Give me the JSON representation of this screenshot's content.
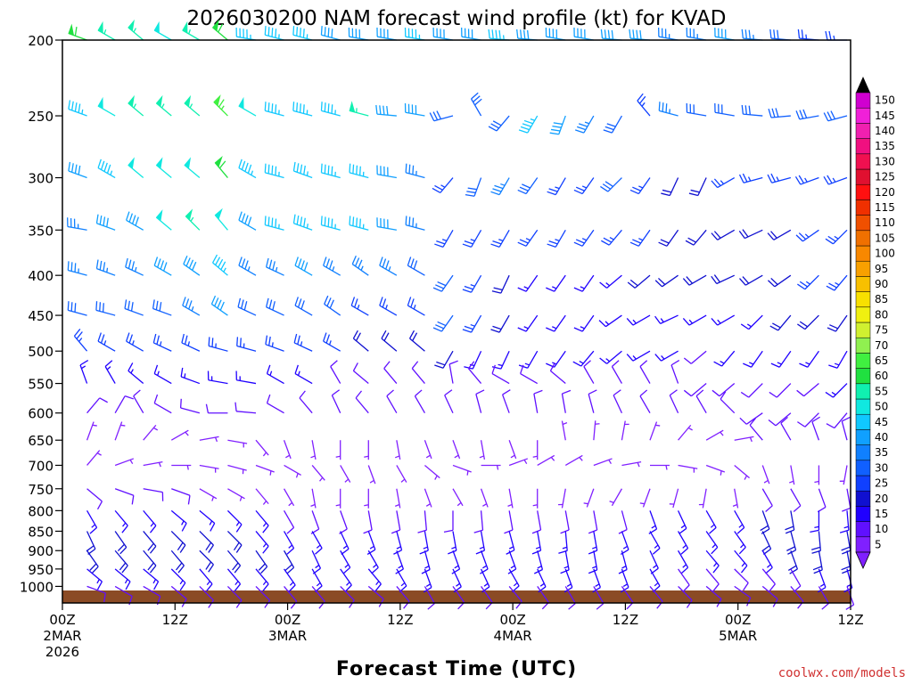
{
  "title": "2026030200 NAM forecast wind profile (kt) for KVAD",
  "xlabel": "Forecast Time (UTC)",
  "credit": "coolwx.com/models",
  "chart_data": {
    "type": "wind-barb-profile",
    "title": "2026030200 NAM forecast wind profile (kt) for KVAD",
    "xlabel": "Forecast Time (UTC)",
    "ylabel": "",
    "units": "kt",
    "y_scale": "log-pressure (hPa), reversed",
    "ylim": [
      200,
      1050
    ],
    "xlim_hours": [
      0,
      84
    ],
    "y_ticks": [
      200,
      250,
      300,
      350,
      400,
      450,
      500,
      550,
      600,
      650,
      700,
      750,
      800,
      850,
      900,
      950,
      1000
    ],
    "x_ticks": [
      {
        "hour": 0,
        "lines": [
          "00Z",
          "2MAR",
          "2026"
        ]
      },
      {
        "hour": 12,
        "lines": [
          "12Z"
        ]
      },
      {
        "hour": 24,
        "lines": [
          "00Z",
          "3MAR"
        ]
      },
      {
        "hour": 36,
        "lines": [
          "12Z"
        ]
      },
      {
        "hour": 48,
        "lines": [
          "00Z",
          "4MAR"
        ]
      },
      {
        "hour": 60,
        "lines": [
          "12Z"
        ]
      },
      {
        "hour": 72,
        "lines": [
          "00Z",
          "5MAR"
        ]
      },
      {
        "hour": 84,
        "lines": [
          "12Z"
        ]
      }
    ],
    "levels": [
      200,
      250,
      300,
      350,
      400,
      450,
      500,
      550,
      600,
      650,
      700,
      750,
      800,
      850,
      900,
      950,
      1000
    ],
    "forecast_hours_interval": 3,
    "colorbar": {
      "labels": [
        "5",
        "10",
        "15",
        "20",
        "25",
        "30",
        "35",
        "40",
        "45",
        "50",
        "55",
        "60",
        "65",
        "70",
        "75",
        "80",
        "85",
        "90",
        "95",
        "100",
        "105",
        "110",
        "115",
        "120",
        "125",
        "130",
        "135",
        "140",
        "145",
        "150"
      ],
      "colors": [
        "#8020ff",
        "#6010ff",
        "#2000ff",
        "#1010d0",
        "#1040ff",
        "#1060ff",
        "#1080ff",
        "#10a0ff",
        "#10c8ff",
        "#10e8e0",
        "#10f0b0",
        "#20e040",
        "#40f040",
        "#90f050",
        "#d0f030",
        "#f0f010",
        "#f8e000",
        "#f8c000",
        "#f8a000",
        "#f88800",
        "#f07000",
        "#f05000",
        "#f03000",
        "#ff1010",
        "#e01030",
        "#f01050",
        "#f01080",
        "#f020b0",
        "#f020d8",
        "#d000d0"
      ]
    },
    "ground": {
      "color": "#8b4b25"
    },
    "rows": [
      {
        "p": 200,
        "dir": [
          290,
          300,
          310,
          300,
          300,
          310,
          280,
          285,
          285,
          285,
          280,
          280,
          280,
          280,
          280,
          275,
          275,
          280,
          280,
          275,
          275,
          280,
          280,
          280,
          275,
          275,
          275,
          270,
          265,
          265
        ],
        "spd": [
          60,
          55,
          55,
          50,
          55,
          60,
          45,
          45,
          45,
          40,
          40,
          40,
          45,
          40,
          40,
          45,
          40,
          40,
          40,
          40,
          40,
          35,
          35,
          40,
          35,
          30,
          25,
          25,
          30,
          25
        ]
      },
      {
        "p": 250,
        "dir": [
          290,
          300,
          310,
          310,
          310,
          315,
          300,
          285,
          285,
          285,
          285,
          275,
          280,
          255,
          330,
          220,
          210,
          200,
          210,
          210,
          320,
          285,
          280,
          280,
          275,
          265,
          260,
          255,
          255,
          265
        ],
        "spd": [
          45,
          50,
          55,
          55,
          55,
          65,
          50,
          45,
          45,
          45,
          55,
          40,
          40,
          30,
          30,
          30,
          45,
          40,
          35,
          30,
          25,
          35,
          30,
          30,
          30,
          30,
          30,
          30,
          30,
          30
        ]
      },
      {
        "p": 300,
        "dir": [
          290,
          300,
          310,
          310,
          310,
          320,
          300,
          285,
          290,
          285,
          285,
          280,
          285,
          220,
          200,
          210,
          215,
          210,
          215,
          225,
          215,
          205,
          205,
          240,
          255,
          255,
          250,
          250,
          245,
          245
        ],
        "spd": [
          40,
          45,
          50,
          50,
          50,
          60,
          45,
          45,
          45,
          45,
          45,
          40,
          35,
          25,
          30,
          35,
          30,
          25,
          25,
          30,
          25,
          20,
          20,
          25,
          25,
          25,
          25,
          25,
          25,
          25
        ]
      },
      {
        "p": 350,
        "dir": [
          280,
          290,
          300,
          310,
          315,
          320,
          300,
          285,
          290,
          285,
          285,
          280,
          285,
          210,
          210,
          210,
          215,
          210,
          215,
          220,
          215,
          215,
          220,
          240,
          245,
          240,
          235,
          225,
          225,
          215
        ],
        "spd": [
          35,
          40,
          40,
          50,
          55,
          50,
          40,
          45,
          45,
          45,
          45,
          40,
          35,
          25,
          25,
          25,
          25,
          25,
          25,
          25,
          25,
          20,
          20,
          20,
          20,
          20,
          25,
          25,
          25,
          25
        ]
      },
      {
        "p": 400,
        "dir": [
          285,
          290,
          295,
          300,
          305,
          310,
          300,
          295,
          300,
          300,
          305,
          300,
          300,
          215,
          210,
          205,
          215,
          215,
          215,
          230,
          230,
          235,
          240,
          245,
          240,
          235,
          225,
          220,
          225,
          215
        ],
        "spd": [
          35,
          35,
          35,
          40,
          40,
          45,
          35,
          35,
          40,
          35,
          35,
          35,
          30,
          30,
          25,
          20,
          15,
          15,
          15,
          15,
          20,
          20,
          20,
          20,
          20,
          20,
          25,
          25,
          25,
          25
        ]
      },
      {
        "p": 450,
        "dir": [
          285,
          285,
          290,
          290,
          300,
          305,
          295,
          295,
          300,
          305,
          300,
          300,
          300,
          215,
          210,
          210,
          215,
          215,
          215,
          235,
          240,
          245,
          240,
          240,
          225,
          220,
          225,
          215,
          215,
          205
        ],
        "spd": [
          30,
          30,
          30,
          30,
          35,
          40,
          30,
          30,
          30,
          30,
          25,
          25,
          25,
          30,
          25,
          20,
          15,
          15,
          15,
          15,
          15,
          15,
          15,
          15,
          15,
          20,
          20,
          20,
          20,
          25
        ]
      },
      {
        "p": 500,
        "dir": [
          320,
          300,
          300,
          295,
          295,
          285,
          285,
          290,
          295,
          300,
          310,
          310,
          310,
          210,
          205,
          205,
          210,
          215,
          220,
          230,
          240,
          240,
          230,
          220,
          215,
          215,
          215,
          210,
          210,
          195
        ],
        "spd": [
          25,
          25,
          25,
          25,
          25,
          25,
          25,
          25,
          25,
          25,
          20,
          20,
          20,
          20,
          15,
          15,
          15,
          15,
          15,
          15,
          15,
          15,
          10,
          15,
          15,
          15,
          15,
          15,
          20,
          20
        ]
      },
      {
        "p": 550,
        "dir": [
          340,
          330,
          310,
          300,
          290,
          280,
          280,
          300,
          300,
          330,
          310,
          320,
          320,
          350,
          320,
          300,
          300,
          310,
          330,
          330,
          330,
          340,
          230,
          230,
          225,
          225,
          230,
          225,
          215,
          200
        ],
        "spd": [
          15,
          15,
          15,
          15,
          15,
          15,
          15,
          15,
          15,
          10,
          10,
          10,
          10,
          10,
          10,
          10,
          10,
          10,
          10,
          10,
          10,
          10,
          10,
          10,
          10,
          10,
          10,
          15,
          15,
          20
        ]
      },
      {
        "p": 600,
        "dir": [
          40,
          30,
          330,
          300,
          285,
          270,
          275,
          300,
          320,
          335,
          320,
          330,
          330,
          335,
          345,
          340,
          350,
          350,
          345,
          335,
          330,
          335,
          330,
          315,
          235,
          230,
          225,
          220,
          215,
          205
        ],
        "spd": [
          10,
          10,
          10,
          10,
          10,
          10,
          10,
          10,
          10,
          10,
          10,
          10,
          10,
          10,
          10,
          10,
          10,
          10,
          10,
          10,
          10,
          10,
          10,
          10,
          10,
          10,
          10,
          10,
          15,
          15
        ]
      },
      {
        "p": 650,
        "dir": [
          20,
          20,
          40,
          60,
          80,
          100,
          140,
          160,
          170,
          180,
          180,
          170,
          160,
          160,
          170,
          160,
          180,
          350,
          5,
          10,
          20,
          40,
          60,
          80,
          320,
          330,
          340,
          345,
          340,
          330
        ],
        "spd": [
          5,
          5,
          5,
          5,
          5,
          5,
          5,
          5,
          5,
          5,
          5,
          5,
          5,
          5,
          5,
          5,
          5,
          5,
          5,
          5,
          5,
          5,
          5,
          5,
          10,
          10,
          10,
          10,
          10,
          10
        ]
      },
      {
        "p": 700,
        "dir": [
          40,
          70,
          80,
          90,
          100,
          105,
          110,
          120,
          140,
          150,
          160,
          150,
          130,
          110,
          90,
          70,
          60,
          60,
          70,
          80,
          90,
          100,
          110,
          130,
          160,
          170,
          180,
          190,
          200,
          210
        ],
        "spd": [
          5,
          5,
          5,
          5,
          5,
          5,
          5,
          5,
          5,
          5,
          5,
          5,
          5,
          5,
          5,
          5,
          5,
          5,
          5,
          5,
          5,
          5,
          5,
          5,
          5,
          5,
          5,
          5,
          5,
          5
        ]
      },
      {
        "p": 750,
        "dir": [
          130,
          110,
          100,
          110,
          120,
          120,
          140,
          150,
          170,
          180,
          180,
          170,
          160,
          150,
          160,
          170,
          180,
          190,
          200,
          210,
          200,
          195,
          190,
          170,
          150,
          150,
          160,
          170,
          160,
          140
        ],
        "spd": [
          10,
          10,
          10,
          10,
          5,
          5,
          5,
          5,
          5,
          5,
          5,
          5,
          5,
          5,
          5,
          5,
          5,
          5,
          5,
          5,
          5,
          5,
          5,
          5,
          10,
          10,
          10,
          10,
          10,
          10
        ]
      },
      {
        "p": 800,
        "dir": [
          150,
          140,
          140,
          130,
          130,
          135,
          140,
          150,
          160,
          160,
          170,
          170,
          175,
          180,
          175,
          170,
          170,
          170,
          170,
          165,
          160,
          155,
          150,
          150,
          160,
          170,
          180,
          175,
          165,
          150
        ],
        "spd": [
          15,
          15,
          15,
          15,
          15,
          15,
          15,
          10,
          10,
          10,
          10,
          10,
          10,
          10,
          10,
          10,
          10,
          10,
          10,
          10,
          15,
          15,
          15,
          15,
          20,
          20,
          15,
          15,
          15,
          15
        ]
      },
      {
        "p": 850,
        "dir": [
          155,
          145,
          140,
          135,
          135,
          135,
          140,
          150,
          150,
          155,
          160,
          165,
          170,
          170,
          170,
          165,
          170,
          175,
          170,
          160,
          150,
          150,
          145,
          145,
          155,
          165,
          175,
          170,
          165,
          155
        ],
        "spd": [
          20,
          20,
          20,
          20,
          20,
          20,
          15,
          15,
          15,
          15,
          15,
          15,
          15,
          15,
          15,
          15,
          15,
          15,
          15,
          15,
          15,
          15,
          15,
          15,
          20,
          20,
          20,
          20,
          20,
          20
        ]
      },
      {
        "p": 900,
        "dir": [
          145,
          140,
          140,
          140,
          135,
          140,
          145,
          150,
          155,
          150,
          150,
          160,
          165,
          160,
          160,
          160,
          165,
          170,
          170,
          165,
          155,
          150,
          140,
          140,
          150,
          160,
          170,
          170,
          165,
          160
        ],
        "spd": [
          20,
          20,
          20,
          20,
          20,
          20,
          20,
          20,
          15,
          15,
          15,
          15,
          15,
          15,
          15,
          15,
          15,
          15,
          15,
          15,
          15,
          15,
          15,
          15,
          15,
          20,
          20,
          20,
          20,
          20
        ]
      },
      {
        "p": 950,
        "dir": [
          130,
          130,
          130,
          135,
          140,
          140,
          140,
          145,
          150,
          145,
          140,
          150,
          160,
          155,
          155,
          150,
          155,
          160,
          160,
          160,
          150,
          145,
          140,
          135,
          140,
          150,
          160,
          165,
          160,
          160
        ],
        "spd": [
          15,
          15,
          15,
          15,
          15,
          15,
          15,
          15,
          15,
          15,
          15,
          15,
          15,
          15,
          15,
          15,
          15,
          15,
          15,
          15,
          15,
          10,
          10,
          10,
          10,
          10,
          15,
          15,
          15,
          15
        ]
      },
      {
        "p": 1000,
        "dir": [
          110,
          120,
          120,
          130,
          135,
          135,
          135,
          140,
          140,
          135,
          130,
          140,
          150,
          145,
          145,
          140,
          145,
          150,
          150,
          145,
          140,
          135,
          130,
          125,
          130,
          140,
          150,
          160,
          160,
          160
        ],
        "spd": [
          10,
          10,
          10,
          10,
          10,
          10,
          10,
          10,
          10,
          10,
          10,
          10,
          10,
          10,
          10,
          10,
          10,
          10,
          10,
          10,
          10,
          10,
          10,
          10,
          10,
          10,
          10,
          10,
          10,
          10
        ]
      }
    ]
  }
}
